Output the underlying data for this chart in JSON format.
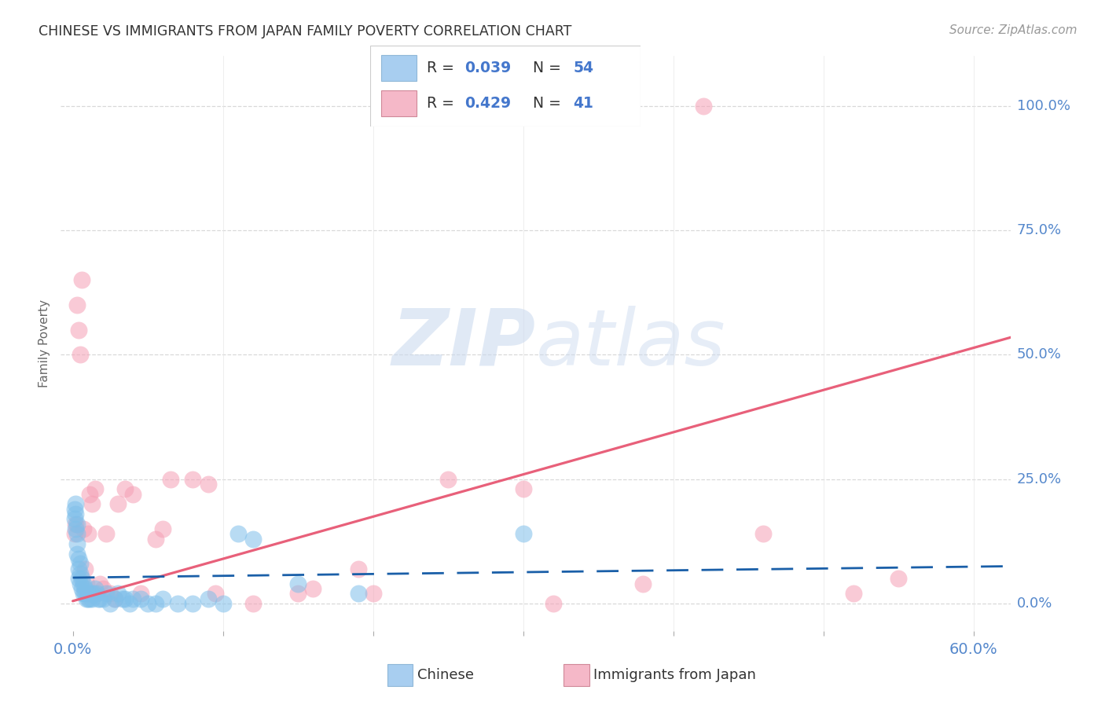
{
  "title": "CHINESE VS IMMIGRANTS FROM JAPAN FAMILY POVERTY CORRELATION CHART",
  "source": "Source: ZipAtlas.com",
  "ylabel": "Family Poverty",
  "ytick_labels": [
    "0.0%",
    "25.0%",
    "50.0%",
    "75.0%",
    "100.0%"
  ],
  "ytick_values": [
    0.0,
    0.25,
    0.5,
    0.75,
    1.0
  ],
  "xtick_values": [
    0.0,
    0.1,
    0.2,
    0.3,
    0.4,
    0.5,
    0.6
  ],
  "xmin": -0.008,
  "xmax": 0.625,
  "ymin": -0.055,
  "ymax": 1.1,
  "blue_color": "#7fbfea",
  "pink_color": "#f5a0b5",
  "blue_line_color": "#1a5fa8",
  "pink_line_color": "#e8607a",
  "watermark_zip": "ZIP",
  "watermark_atlas": "atlas",
  "legend_color_blue": "#a8cef0",
  "legend_color_pink": "#f5b8c8",
  "blue_scatter_x": [
    0.001,
    0.001,
    0.002,
    0.002,
    0.002,
    0.003,
    0.003,
    0.003,
    0.003,
    0.004,
    0.004,
    0.004,
    0.005,
    0.005,
    0.005,
    0.006,
    0.006,
    0.007,
    0.007,
    0.008,
    0.008,
    0.009,
    0.01,
    0.01,
    0.011,
    0.012,
    0.013,
    0.014,
    0.015,
    0.016,
    0.017,
    0.018,
    0.02,
    0.022,
    0.025,
    0.028,
    0.03,
    0.033,
    0.035,
    0.038,
    0.04,
    0.045,
    0.05,
    0.055,
    0.06,
    0.07,
    0.08,
    0.09,
    0.1,
    0.11,
    0.12,
    0.15,
    0.19,
    0.3
  ],
  "blue_scatter_y": [
    0.19,
    0.17,
    0.2,
    0.18,
    0.15,
    0.16,
    0.14,
    0.12,
    0.1,
    0.09,
    0.07,
    0.05,
    0.08,
    0.06,
    0.04,
    0.05,
    0.03,
    0.04,
    0.02,
    0.03,
    0.02,
    0.01,
    0.02,
    0.01,
    0.01,
    0.02,
    0.01,
    0.02,
    0.03,
    0.02,
    0.01,
    0.01,
    0.01,
    0.02,
    0.0,
    0.01,
    0.02,
    0.01,
    0.01,
    0.0,
    0.01,
    0.01,
    0.0,
    0.0,
    0.01,
    0.0,
    0.0,
    0.01,
    0.0,
    0.14,
    0.13,
    0.04,
    0.02,
    0.14
  ],
  "pink_scatter_x": [
    0.001,
    0.002,
    0.003,
    0.004,
    0.005,
    0.006,
    0.007,
    0.008,
    0.009,
    0.01,
    0.011,
    0.013,
    0.015,
    0.018,
    0.02,
    0.022,
    0.025,
    0.028,
    0.03,
    0.035,
    0.04,
    0.045,
    0.055,
    0.06,
    0.065,
    0.08,
    0.09,
    0.095,
    0.12,
    0.15,
    0.16,
    0.19,
    0.2,
    0.25,
    0.3,
    0.32,
    0.38,
    0.42,
    0.46,
    0.52,
    0.55
  ],
  "pink_scatter_y": [
    0.14,
    0.16,
    0.6,
    0.55,
    0.5,
    0.65,
    0.15,
    0.07,
    0.04,
    0.14,
    0.22,
    0.2,
    0.23,
    0.04,
    0.03,
    0.14,
    0.02,
    0.01,
    0.2,
    0.23,
    0.22,
    0.02,
    0.13,
    0.15,
    0.25,
    0.25,
    0.24,
    0.02,
    0.0,
    0.02,
    0.03,
    0.07,
    0.02,
    0.25,
    0.23,
    0.0,
    0.04,
    1.0,
    0.14,
    0.02,
    0.05
  ],
  "blue_trend_x": [
    0.0,
    0.625
  ],
  "blue_trend_y": [
    0.052,
    0.075
  ],
  "pink_trend_x": [
    0.0,
    0.625
  ],
  "pink_trend_y": [
    0.005,
    0.535
  ],
  "grid_color": "#d0d0d0",
  "bg_color": "#ffffff",
  "r_blue": "0.039",
  "n_blue": "54",
  "r_pink": "0.429",
  "n_pink": "41"
}
